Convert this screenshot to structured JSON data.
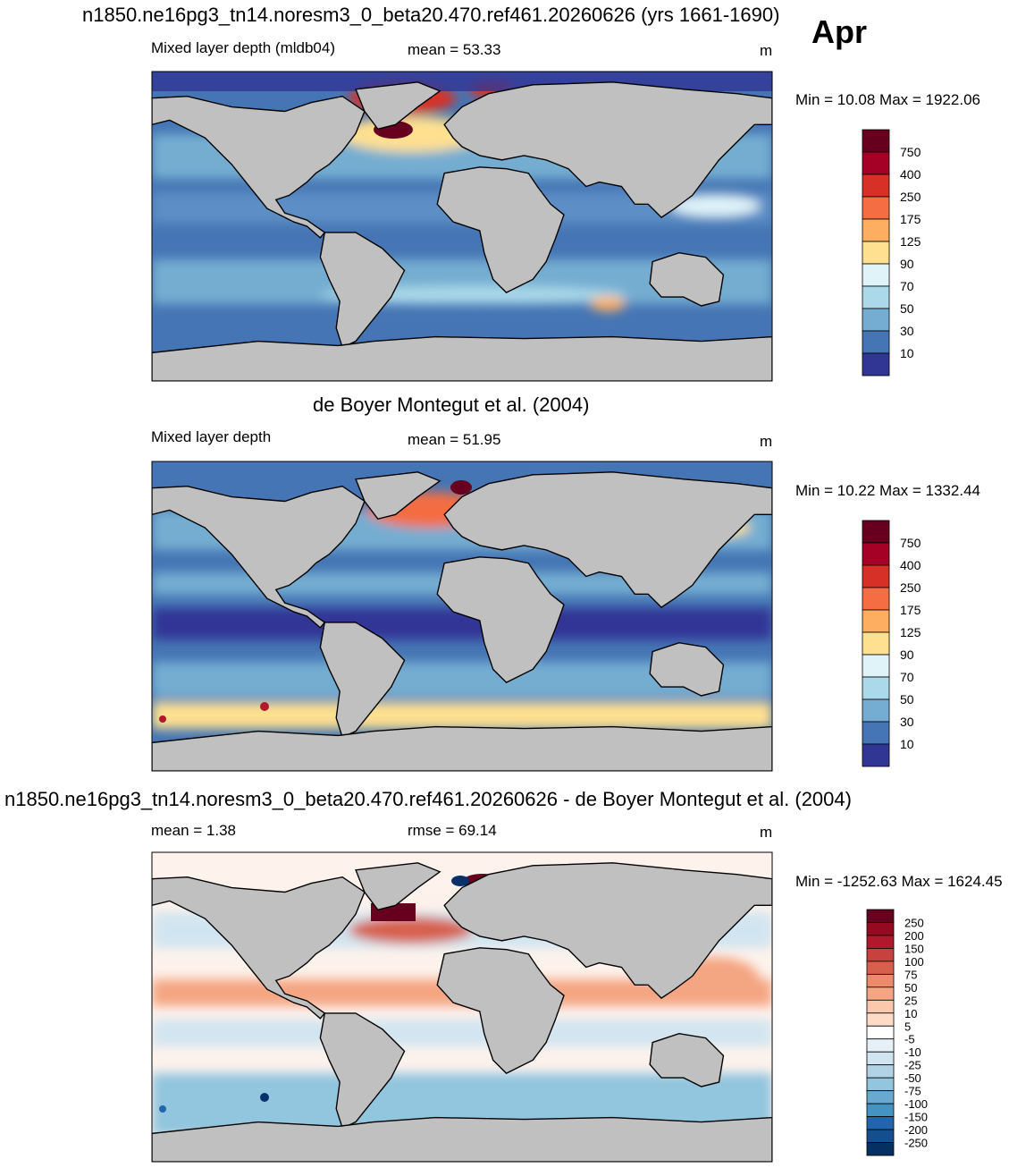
{
  "figure": {
    "month": "Apr",
    "title_top": "n1850.ne16pg3_tn14.noresm3_0_beta20.470.ref461.20260626 (yrs 1661-1690)",
    "title_middle": "de Boyer Montegut et al. (2004)",
    "title_bottom": "n1850.ne16pg3_tn14.noresm3_0_beta20.470.ref461.20260626 - de Boyer Montegut et al. (2004)"
  },
  "panels": [
    {
      "left_label": "Mixed layer depth (mldb04)",
      "center_label": "mean =  53.33",
      "units": "m",
      "minmax": "Min =  10.08 Max = 1922.06",
      "colorbar": [
        "750",
        "400",
        "250",
        "175",
        "125",
        "90",
        "70",
        "50",
        "30",
        "10"
      ],
      "colors": [
        "#67001f",
        "#b2182b",
        "#d6604d",
        "#f4a582",
        "#fddbc7",
        "#e0f3f8",
        "#abd9e9",
        "#74add1",
        "#4575b4",
        "#313695"
      ]
    },
    {
      "left_label": "Mixed layer depth",
      "center_label": "mean =  51.95",
      "units": "m",
      "minmax": "Min =  10.22 Max = 1332.44",
      "colorbar": [
        "750",
        "400",
        "250",
        "175",
        "125",
        "90",
        "70",
        "50",
        "30",
        "10"
      ]
    },
    {
      "left_label": "mean =   1.38",
      "center_label": "rmse =  69.14",
      "units": "m",
      "minmax": "Min = -1252.63 Max = 1624.45",
      "colorbar": [
        "250",
        "200",
        "150",
        "100",
        "75",
        "50",
        "25",
        "10",
        "5",
        "-5",
        "-10",
        "-25",
        "-50",
        "-75",
        "-100",
        "-150",
        "-200",
        "-250"
      ]
    }
  ],
  "colors": {
    "land": "#c0c0c0",
    "coast": "#000000"
  }
}
